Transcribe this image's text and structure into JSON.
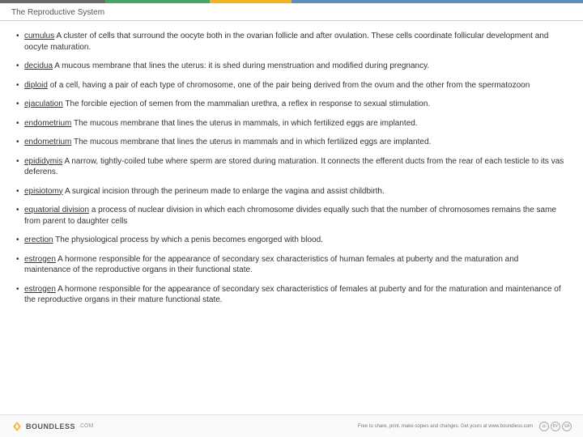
{
  "top_bars": [
    {
      "color": "#6a6a6a",
      "width": "18%"
    },
    {
      "color": "#4aa564",
      "width": "18%"
    },
    {
      "color": "#f0b323",
      "width": "14%"
    },
    {
      "color": "#5b8fb9",
      "width": "50%"
    }
  ],
  "header": {
    "title": "The Reproductive System"
  },
  "glossary": [
    {
      "term": "cumulus",
      "def": "A cluster of cells that surround the oocyte both in the ovarian follicle and after ovulation. These cells coordinate follicular development and oocyte maturation."
    },
    {
      "term": "decidua",
      "def": "A mucous membrane that lines the uterus: it is shed during menstruation and modified during pregnancy."
    },
    {
      "term": "diploid",
      "def": "of a cell, having a pair of each type of chromosome, one of the pair being derived from the ovum and the other from the spermatozoon"
    },
    {
      "term": "ejaculation",
      "def": "The forcible ejection of semen from the mammalian urethra, a reflex in response to sexual stimulation."
    },
    {
      "term": "endometrium",
      "def": "The mucous membrane that lines the uterus in mammals, in which fertilized eggs are implanted."
    },
    {
      "term": "endometrium",
      "def": "The mucous membrane that lines the uterus in mammals and in which fertilized eggs are implanted."
    },
    {
      "term": "epididymis",
      "def": "A narrow, tightly-coiled tube where sperm are stored during maturation. It connects the efferent ducts from the rear of each testicle to its vas deferens."
    },
    {
      "term": "episiotomy",
      "def": "A surgical incision through the perineum made to enlarge the vagina and assist childbirth."
    },
    {
      "term": "equatorial division",
      "def": "a process of nuclear division in which each chromosome divides equally such that the number of chromosomes remains the same from parent to daughter cells"
    },
    {
      "term": "erection",
      "def": "The physiological process by which a penis becomes engorged with blood."
    },
    {
      "term": "estrogen",
      "def": "A hormone responsible for the appearance of secondary sex characteristics of human females at puberty and the maturation and maintenance of the reproductive organs in their functional state."
    },
    {
      "term": "estrogen",
      "def": "A hormone responsible for the appearance of secondary sex characteristics of females at puberty and for the maturation and maintenance of the reproductive organs in their mature functional state."
    }
  ],
  "footer": {
    "logo_text": "BOUNDLESS",
    "logo_sub": ".COM",
    "tagline": "Free to share, print, make copies and changes. Get yours at www.boundless.com",
    "logo_color": "#f0b323"
  }
}
